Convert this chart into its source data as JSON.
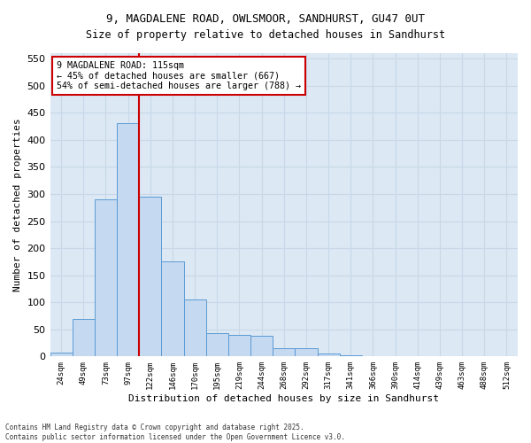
{
  "title_line1": "9, MAGDALENE ROAD, OWLSMOOR, SANDHURST, GU47 0UT",
  "title_line2": "Size of property relative to detached houses in Sandhurst",
  "xlabel": "Distribution of detached houses by size in Sandhurst",
  "ylabel": "Number of detached properties",
  "bin_labels": [
    "24sqm",
    "49sqm",
    "73sqm",
    "97sqm",
    "122sqm",
    "146sqm",
    "170sqm",
    "195sqm",
    "219sqm",
    "244sqm",
    "268sqm",
    "292sqm",
    "317sqm",
    "341sqm",
    "366sqm",
    "390sqm",
    "414sqm",
    "439sqm",
    "463sqm",
    "488sqm",
    "512sqm"
  ],
  "bar_values": [
    7,
    70,
    290,
    430,
    295,
    175,
    105,
    43,
    40,
    38,
    15,
    15,
    5,
    2,
    1,
    1,
    0,
    0,
    0,
    0,
    0
  ],
  "bar_color": "#c5d9f0",
  "bar_edge_color": "#5b9bd5",
  "vline_x": 3.5,
  "annotation_line1": "9 MAGDALENE ROAD: 115sqm",
  "annotation_line2": "← 45% of detached houses are smaller (667)",
  "annotation_line3": "54% of semi-detached houses are larger (788) →",
  "vline_color": "#cc0000",
  "annotation_box_facecolor": "#ffffff",
  "annotation_box_edgecolor": "#cc0000",
  "ylim": [
    0,
    560
  ],
  "yticks": [
    0,
    50,
    100,
    150,
    200,
    250,
    300,
    350,
    400,
    450,
    500,
    550
  ],
  "grid_color": "#c8d8e8",
  "plot_bg_color": "#dce8f4",
  "fig_bg_color": "#ffffff",
  "footer_line1": "Contains HM Land Registry data © Crown copyright and database right 2025.",
  "footer_line2": "Contains public sector information licensed under the Open Government Licence v3.0."
}
